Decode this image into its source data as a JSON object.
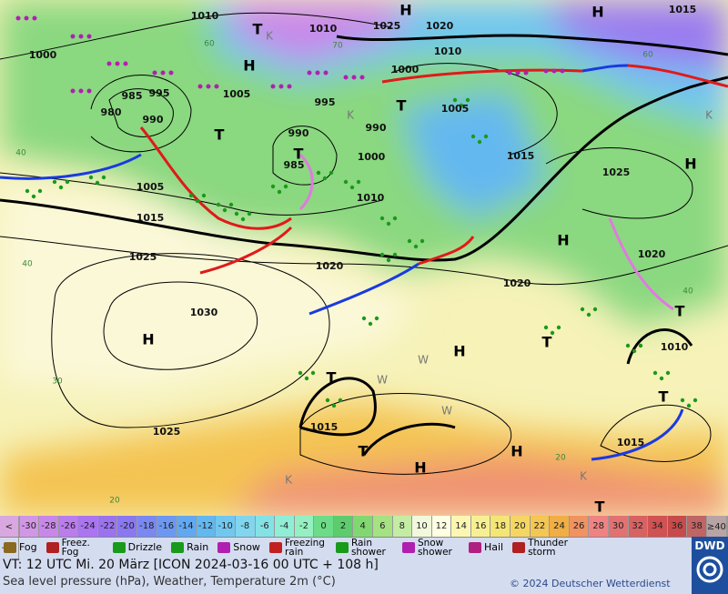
{
  "map": {
    "pressure_labels": [
      "1010",
      "1010",
      "1025",
      "1020",
      "1010",
      "1015",
      "1000",
      "1005",
      "995",
      "985",
      "980",
      "990",
      "995",
      "990",
      "1005",
      "990",
      "985",
      "1000",
      "1010",
      "1015",
      "1025",
      "1005",
      "1015",
      "1025",
      "1020",
      "1020",
      "1020",
      "1030",
      "1010",
      "1015",
      "1025",
      "1015",
      "1000"
    ],
    "centers": [
      "H",
      "H",
      "T",
      "H",
      "T",
      "T",
      "T",
      "H",
      "H",
      "H",
      "H",
      "T",
      "T",
      "T",
      "T",
      "H",
      "H",
      "T",
      "T"
    ],
    "temperature_labels": [
      "40",
      "40",
      "30",
      "20",
      "20",
      "40",
      "60",
      "60",
      "70"
    ],
    "air_mass_labels": [
      "K",
      "K",
      "K",
      "K",
      "W",
      "W",
      "W",
      "K"
    ]
  },
  "colorbar": {
    "below_sign": "<",
    "low": -30,
    "low_color": "#d9a8e0",
    "cells": [
      -30,
      -28,
      -26,
      -24,
      -22,
      -20,
      -18,
      -16,
      -14,
      -12,
      -10,
      -8,
      -6,
      -4,
      -2,
      0,
      2,
      4,
      6,
      8,
      10,
      12,
      14,
      16,
      18,
      20,
      22,
      24,
      26,
      28,
      30,
      32,
      34,
      36,
      38
    ],
    "colors": [
      "#d296e6",
      "#c888ea",
      "#bb7cee",
      "#ab74f0",
      "#9b72f0",
      "#8a78f2",
      "#7a88f2",
      "#6c98f2",
      "#62a8f0",
      "#62b8f0",
      "#70c8f0",
      "#80d6ee",
      "#84e2e6",
      "#90eed6",
      "#94f0c0",
      "#6cdc88",
      "#5ccc6c",
      "#82d870",
      "#a4e282",
      "#c4eca4",
      "#f2f8dc",
      "#ffffe4",
      "#fbf7b2",
      "#f8ef92",
      "#f5e574",
      "#f5d662",
      "#f4c652",
      "#f0ae44",
      "#f09262",
      "#f08282",
      "#e27272",
      "#d86262",
      "#d05252",
      "#c84a4a",
      "#c06464"
    ],
    "high": "≥40",
    "unit": "°C",
    "high_color": "#b8a4a4"
  },
  "legend": [
    "Fog",
    "Freez. Fog",
    "Drizzle",
    "Rain",
    "Snow",
    "Freezing rain",
    "Rain shower",
    "Snow shower",
    "Hail",
    "Thunder storm"
  ],
  "footer": {
    "valid_time": "VT: 12 UTC Mi.  20 März [ICON 2024-03-16  00 UTC + 108 h]",
    "subtitle": "Sea level pressure (hPa), Weather, Temperature 2m (°C)",
    "copyright": "© 2024 Deutscher Wetterdienst",
    "logo": "DWD"
  }
}
